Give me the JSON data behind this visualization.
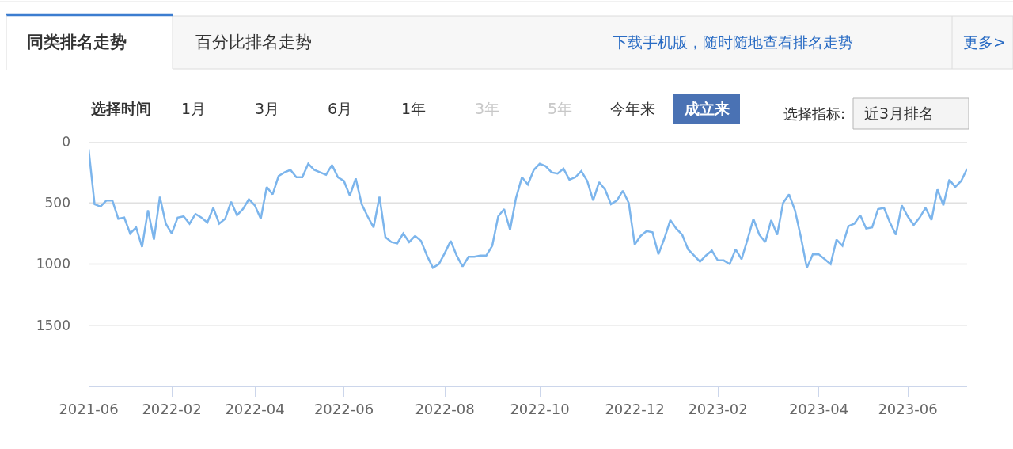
{
  "chart_data": {
    "type": "line",
    "title": "同类排名走势",
    "annotations": [
      "百分比排名走势",
      "下载手机版，随时随地查看排名走势",
      "更多>",
      "选择时间",
      "1月",
      "3月",
      "6月",
      "1年",
      "3年",
      "5年",
      "今年来",
      "成立来",
      "选择指标:",
      "近3月排名"
    ],
    "categories": [
      "2021-06",
      null,
      null,
      null,
      null,
      null,
      null,
      null,
      null,
      null,
      null,
      null,
      null,
      null,
      "2022-02",
      null,
      null,
      null,
      null,
      null,
      null,
      null,
      null,
      null,
      null,
      null,
      null,
      null,
      "2022-04",
      null,
      null,
      null,
      null,
      null,
      null,
      null,
      null,
      null,
      null,
      null,
      null,
      null,
      null,
      "2022-06",
      null,
      null,
      null,
      null,
      null,
      null,
      null,
      null,
      null,
      null,
      null,
      null,
      null,
      null,
      null,
      null,
      "2022-08",
      null,
      null,
      null,
      null,
      null,
      null,
      null,
      null,
      null,
      null,
      null,
      null,
      null,
      null,
      null,
      "2022-10",
      null,
      null,
      null,
      null,
      null,
      null,
      null,
      null,
      null,
      null,
      null,
      null,
      null,
      null,
      null,
      "2022-12",
      null,
      null,
      null,
      null,
      null,
      null,
      null,
      null,
      null,
      null,
      null,
      null,
      null,
      "2023-02",
      null,
      null,
      null,
      null,
      null,
      null,
      null,
      null,
      null,
      null,
      null,
      null,
      null,
      null,
      null,
      null,
      "2023-04",
      null,
      null,
      null,
      null,
      null,
      null,
      null,
      null,
      null,
      null,
      null,
      null,
      null,
      null,
      "2023-06",
      null,
      null,
      null,
      null,
      null,
      null,
      null,
      null,
      null,
      null
    ],
    "values": [
      60,
      510,
      530,
      480,
      480,
      630,
      620,
      750,
      700,
      860,
      560,
      800,
      450,
      670,
      750,
      620,
      610,
      670,
      590,
      620,
      660,
      540,
      670,
      630,
      490,
      600,
      550,
      470,
      520,
      630,
      370,
      430,
      280,
      250,
      230,
      290,
      290,
      180,
      230,
      250,
      270,
      190,
      290,
      320,
      440,
      300,
      510,
      610,
      700,
      450,
      780,
      820,
      830,
      750,
      820,
      770,
      810,
      930,
      1030,
      1000,
      910,
      810,
      930,
      1020,
      940,
      940,
      930,
      930,
      850,
      610,
      550,
      720,
      460,
      290,
      350,
      230,
      180,
      200,
      250,
      260,
      220,
      310,
      290,
      240,
      320,
      480,
      330,
      390,
      510,
      480,
      400,
      500,
      840,
      770,
      730,
      740,
      920,
      790,
      640,
      710,
      760,
      880,
      930,
      980,
      930,
      890,
      970,
      970,
      1000,
      880,
      960,
      800,
      630,
      760,
      820,
      640,
      760,
      500,
      430,
      560,
      780,
      1030,
      920,
      920,
      960,
      1000,
      800,
      850,
      690,
      670,
      600,
      710,
      700,
      550,
      540,
      660,
      760,
      520,
      610,
      680,
      620,
      540,
      640,
      390,
      520,
      310,
      370,
      320,
      220
    ],
    "color": "#7cb5ec",
    "ylim": [
      2000,
      0
    ],
    "yticks": [
      0,
      500,
      1000,
      1500
    ],
    "grid": "y"
  }
}
